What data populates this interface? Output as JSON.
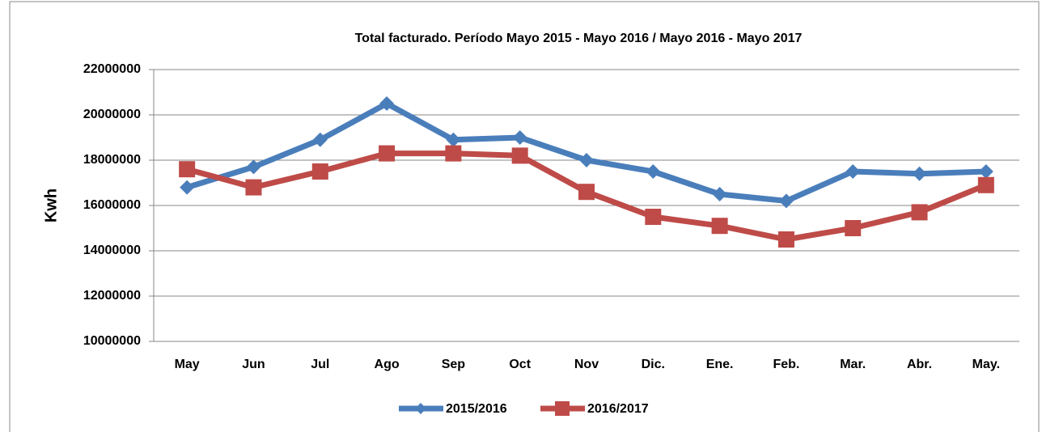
{
  "chart_data": {
    "type": "line",
    "title": "Total facturado. Período Mayo 2015 - Mayo 2016 / Mayo 2016 - Mayo 2017",
    "y_label": "Kwh",
    "categories": [
      "May",
      "Jun",
      "Jul",
      "Ago",
      "Sep",
      "Oct",
      "Nov",
      "Dic.",
      "Ene.",
      "Feb.",
      "Mar.",
      "Abr.",
      "May."
    ],
    "series": [
      {
        "name": "2015/2016",
        "color": "#4a7ebb",
        "marker": "diamond",
        "values": [
          16800000,
          17700000,
          18900000,
          20500000,
          18900000,
          19000000,
          18000000,
          17500000,
          16500000,
          16200000,
          17500000,
          17400000,
          17500000
        ]
      },
      {
        "name": "2016/2017",
        "color": "#be4b48",
        "marker": "square",
        "values": [
          17600000,
          16800000,
          17500000,
          18300000,
          18300000,
          18200000,
          16600000,
          15500000,
          15100000,
          14500000,
          15000000,
          15700000,
          16900000
        ]
      }
    ],
    "ylim": [
      10000000,
      22000000
    ],
    "yticks": [
      10000000,
      12000000,
      14000000,
      16000000,
      18000000,
      20000000,
      22000000
    ],
    "grid": true,
    "legend": "bottom"
  }
}
